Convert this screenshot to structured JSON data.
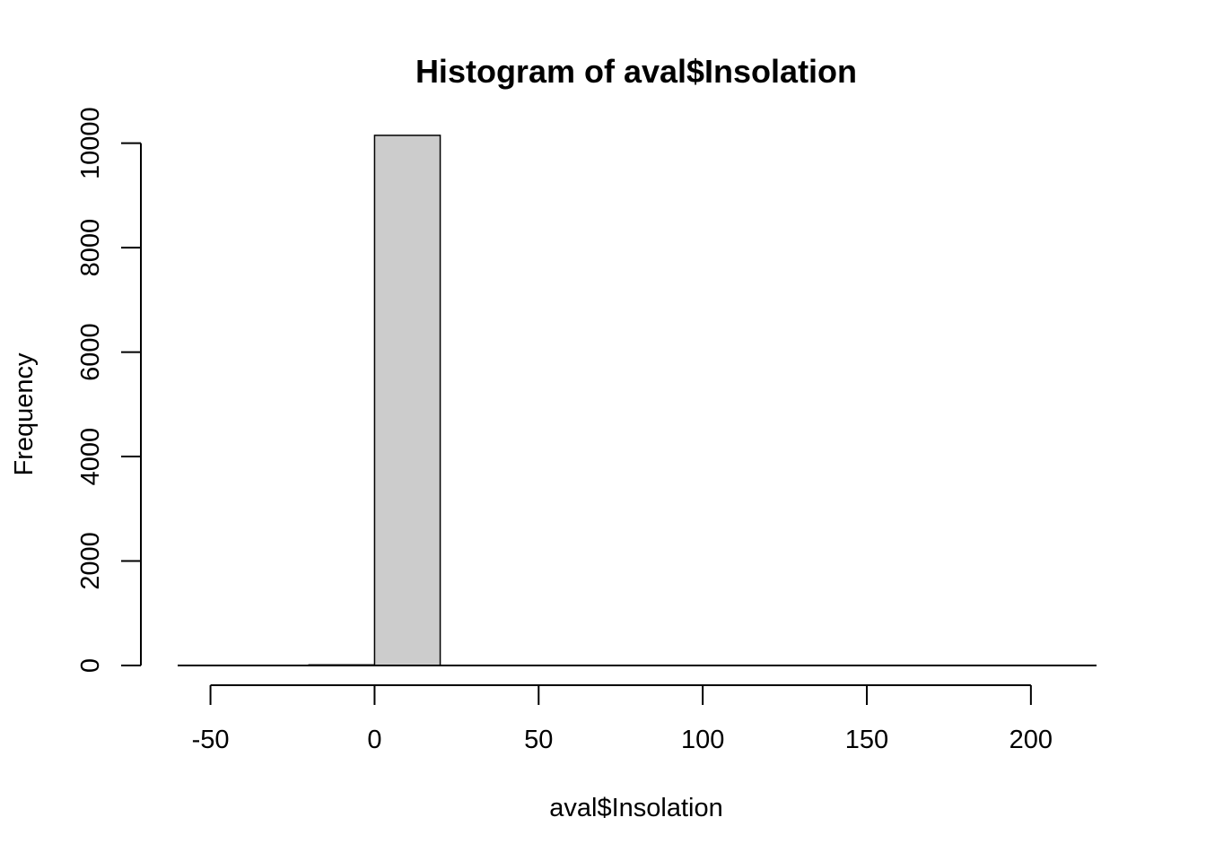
{
  "chart_data": {
    "type": "bar",
    "title": "Histogram of aval$Insolation",
    "xlabel": "aval$Insolation",
    "ylabel": "Frequency",
    "xlim": [
      -60,
      220
    ],
    "ylim": [
      0,
      10200
    ],
    "x_ticks": [
      -50,
      0,
      50,
      100,
      150,
      200
    ],
    "y_ticks": [
      0,
      2000,
      4000,
      6000,
      8000,
      10000
    ],
    "bin_edges": [
      -40,
      -20,
      0,
      20,
      40,
      60,
      80,
      100,
      120,
      140,
      160,
      180,
      200,
      220
    ],
    "counts": [
      0,
      12,
      10150,
      0,
      0,
      0,
      0,
      0,
      0,
      0,
      0,
      0,
      0
    ],
    "bar_fill": "#cccccc",
    "bar_stroke": "#000000",
    "grid": false
  }
}
